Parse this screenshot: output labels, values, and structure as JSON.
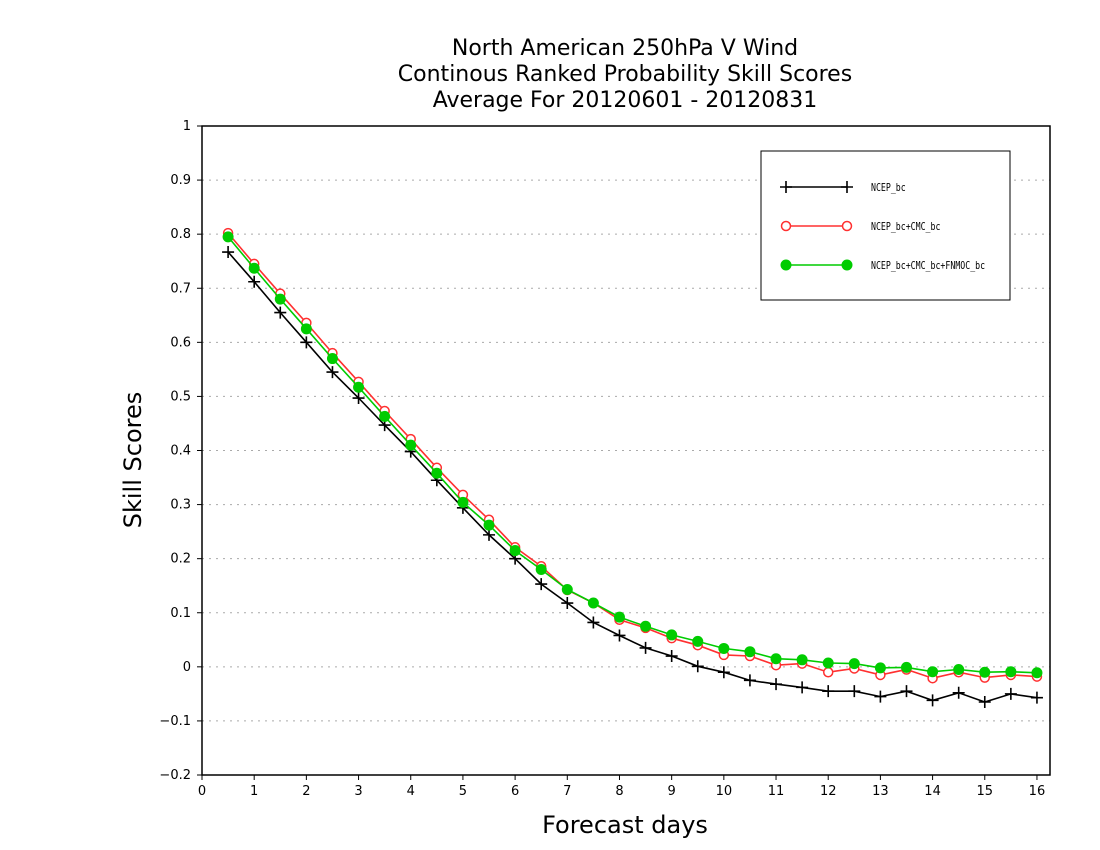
{
  "chart_data": {
    "type": "line",
    "title_lines": [
      "North American 250hPa V Wind",
      "Continous Ranked Probability Skill Scores",
      "Average For 20120601 - 20120831"
    ],
    "xlabel": "Forecast days",
    "ylabel": "Skill Scores",
    "xlim": [
      0,
      16.25
    ],
    "ylim": [
      -0.2,
      1.0
    ],
    "x_ticks": [
      0,
      1,
      2,
      3,
      4,
      5,
      6,
      7,
      8,
      9,
      10,
      11,
      12,
      13,
      14,
      15,
      16
    ],
    "x_tick_labels": [
      "0",
      "1",
      "2",
      "3",
      "4",
      "5",
      "6",
      "7",
      "8",
      "9",
      "10",
      "11",
      "12",
      "13",
      "14",
      "15",
      "16"
    ],
    "y_ticks": [
      -0.2,
      -0.1,
      0,
      0.1,
      0.2,
      0.3,
      0.4,
      0.5,
      0.6,
      0.7,
      0.8,
      0.9,
      1
    ],
    "y_tick_labels": [
      "−0.2",
      "−0.1",
      "0",
      "0.1",
      "0.2",
      "0.3",
      "0.4",
      "0.5",
      "0.6",
      "0.7",
      "0.8",
      "0.9",
      "1"
    ],
    "grid": "horizontal dotted",
    "legend_position": "top-right",
    "x": [
      0.5,
      1,
      1.5,
      2,
      2.5,
      3,
      3.5,
      4,
      4.5,
      5,
      5.5,
      6,
      6.5,
      7,
      7.5,
      8,
      8.5,
      9,
      9.5,
      10,
      10.5,
      11,
      11.5,
      12,
      12.5,
      13,
      13.5,
      14,
      14.5,
      15,
      15.5,
      16
    ],
    "series": [
      {
        "name": "NCEP_bc",
        "color": "#000000",
        "marker": "plus",
        "values": [
          0.767,
          0.712,
          0.655,
          0.6,
          0.545,
          0.497,
          0.447,
          0.398,
          0.345,
          0.294,
          0.244,
          0.2,
          0.153,
          0.118,
          0.082,
          0.058,
          0.035,
          0.02,
          0.001,
          -0.01,
          -0.025,
          -0.032,
          -0.038,
          -0.045,
          -0.045,
          -0.055,
          -0.045,
          -0.062,
          -0.048,
          -0.065,
          -0.05,
          -0.057
        ]
      },
      {
        "name": "NCEP_bc+CMC_bc",
        "color": "#ff3030",
        "marker": "open-circle",
        "values": [
          0.802,
          0.745,
          0.69,
          0.636,
          0.58,
          0.527,
          0.473,
          0.421,
          0.368,
          0.318,
          0.272,
          0.221,
          0.186,
          0.142,
          0.118,
          0.087,
          0.072,
          0.053,
          0.04,
          0.022,
          0.02,
          0.003,
          0.006,
          -0.01,
          -0.003,
          -0.015,
          -0.005,
          -0.021,
          -0.01,
          -0.02,
          -0.015,
          -0.018
        ]
      },
      {
        "name": "NCEP_bc+CMC_bc+FNMOC_bc",
        "color": "#00cc00",
        "marker": "filled-circle",
        "values": [
          0.795,
          0.737,
          0.68,
          0.625,
          0.57,
          0.517,
          0.463,
          0.41,
          0.358,
          0.304,
          0.262,
          0.215,
          0.18,
          0.143,
          0.118,
          0.092,
          0.075,
          0.059,
          0.047,
          0.034,
          0.028,
          0.015,
          0.013,
          0.007,
          0.006,
          -0.002,
          -0.001,
          -0.009,
          -0.005,
          -0.01,
          -0.009,
          -0.011
        ]
      }
    ]
  }
}
